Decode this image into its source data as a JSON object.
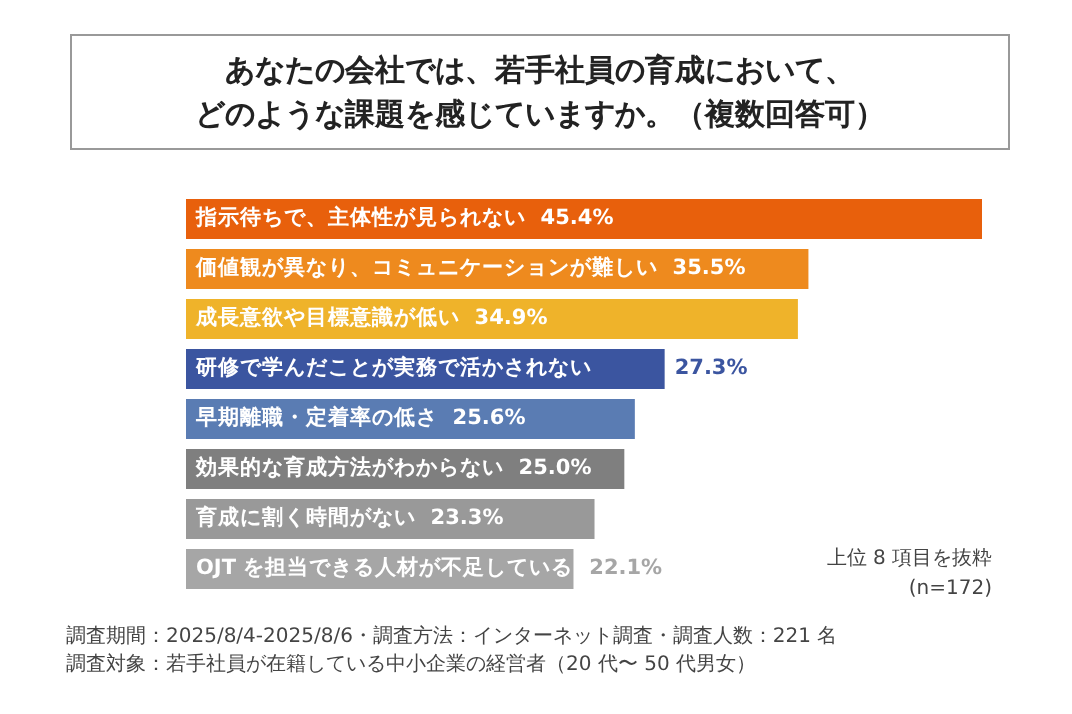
{
  "chart_data": {
    "type": "bar",
    "orientation": "horizontal",
    "title": "あなたの会社では、若手社員の育成において、",
    "subtitle": "どのような課題を感じていますか。（複数回答可）",
    "categories": [
      "指示待ちで、主体性が見られない",
      "価値観が異なり、コミュニケーションが難しい",
      "成長意欲や目標意識が低い",
      "研修で学んだことが実務で活かされない",
      "早期離職・定着率の低さ",
      "効果的な育成方法がわからない",
      "育成に割く時間がない",
      "OJT を担当できる人材が不足している"
    ],
    "values": [
      45.4,
      35.5,
      34.9,
      27.3,
      25.6,
      25.0,
      23.3,
      22.1
    ],
    "value_labels": [
      "45.4%",
      "35.5%",
      "34.9%",
      "27.3%",
      "25.6%",
      "25.0%",
      "23.3%",
      "22.1%"
    ],
    "colors": [
      "#e8600c",
      "#ee8a1e",
      "#efb32a",
      "#3b55a0",
      "#5a7cb3",
      "#7f7f7f",
      "#999999",
      "#a6a6a6"
    ],
    "legend": false,
    "annotations": [
      "上位 8 項目を抜粋",
      "(n=172)",
      "調査期間：2025/8/4-2025/8/6・調査方法：インターネット調査・調査人数：221 名",
      "調査対象：若手社員が在籍している中小企業の経営者（20 代〜 50 代男女）"
    ]
  }
}
